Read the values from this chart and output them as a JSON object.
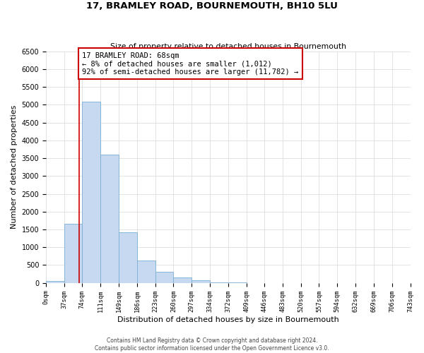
{
  "title": "17, BRAMLEY ROAD, BOURNEMOUTH, BH10 5LU",
  "subtitle": "Size of property relative to detached houses in Bournemouth",
  "xlabel": "Distribution of detached houses by size in Bournemouth",
  "ylabel": "Number of detached properties",
  "bar_edges": [
    0,
    37,
    74,
    111,
    149,
    186,
    223,
    260,
    297,
    334,
    372,
    409,
    446,
    483,
    520,
    557,
    594,
    632,
    669,
    706,
    743
  ],
  "bar_heights": [
    60,
    1650,
    5080,
    3600,
    1430,
    620,
    310,
    150,
    75,
    20,
    5,
    0,
    0,
    0,
    0,
    0,
    0,
    0,
    0,
    0
  ],
  "bar_color": "#c6d9f0",
  "bar_edgecolor": "#7aafd4",
  "property_line_x": 68,
  "property_line_color": "#cc0000",
  "annotation_box_text": "17 BRAMLEY ROAD: 68sqm\n← 8% of detached houses are smaller (1,012)\n92% of semi-detached houses are larger (11,782) →",
  "box_edgecolor": "#cc0000",
  "ylim": [
    0,
    6500
  ],
  "xlim": [
    0,
    743
  ],
  "tick_labels": [
    "0sqm",
    "37sqm",
    "74sqm",
    "111sqm",
    "149sqm",
    "186sqm",
    "223sqm",
    "260sqm",
    "297sqm",
    "334sqm",
    "372sqm",
    "409sqm",
    "446sqm",
    "483sqm",
    "520sqm",
    "557sqm",
    "594sqm",
    "632sqm",
    "669sqm",
    "706sqm",
    "743sqm"
  ],
  "yticks": [
    0,
    500,
    1000,
    1500,
    2000,
    2500,
    3000,
    3500,
    4000,
    4500,
    5000,
    5500,
    6000,
    6500
  ],
  "footer_line1": "Contains HM Land Registry data © Crown copyright and database right 2024.",
  "footer_line2": "Contains public sector information licensed under the Open Government Licence v3.0.",
  "bg_color": "#ffffff",
  "grid_color": "#d8d8d8"
}
